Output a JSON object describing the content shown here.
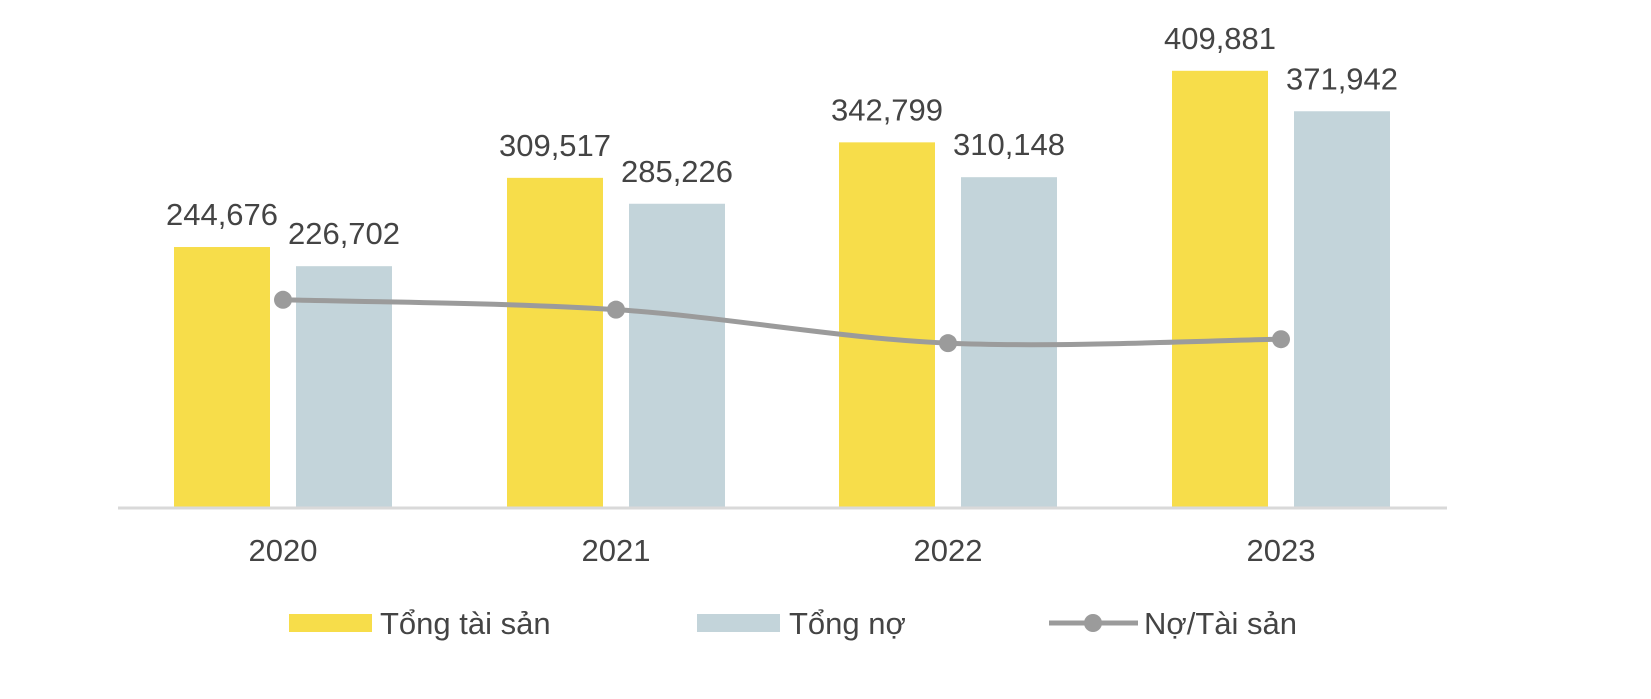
{
  "chart_data": {
    "type": "bar",
    "categories": [
      "2020",
      "2021",
      "2022",
      "2023"
    ],
    "series": [
      {
        "name": "Tổng tài sản",
        "kind": "bar",
        "values": [
          244676,
          309517,
          342799,
          409881
        ],
        "labels": [
          "244,676",
          "309,517",
          "342,799",
          "409,881"
        ],
        "color": "#F7DD4A"
      },
      {
        "name": "Tổng nợ",
        "kind": "bar",
        "values": [
          226702,
          285226,
          310148,
          371942
        ],
        "labels": [
          "226,702",
          "285,226",
          "310,148",
          "371,942"
        ],
        "color": "#C3D4DA"
      },
      {
        "name": "Nợ/Tài sản",
        "kind": "line",
        "values": [
          0.927,
          0.922,
          0.905,
          0.907
        ],
        "color": "#9B9B9B"
      }
    ],
    "ylim": [
      0,
      420000
    ],
    "grid": false,
    "legend": "bottom",
    "axis_color": "#D9D9D9",
    "text_color": "#444444"
  }
}
